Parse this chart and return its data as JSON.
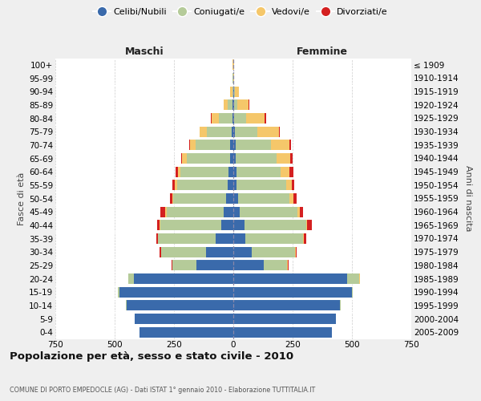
{
  "age_groups": [
    "0-4",
    "5-9",
    "10-14",
    "15-19",
    "20-24",
    "25-29",
    "30-34",
    "35-39",
    "40-44",
    "45-49",
    "50-54",
    "55-59",
    "60-64",
    "65-69",
    "70-74",
    "75-79",
    "80-84",
    "85-89",
    "90-94",
    "95-99",
    "100+"
  ],
  "birth_years": [
    "2005-2009",
    "2000-2004",
    "1995-1999",
    "1990-1994",
    "1985-1989",
    "1980-1984",
    "1975-1979",
    "1970-1974",
    "1965-1969",
    "1960-1964",
    "1955-1959",
    "1950-1954",
    "1945-1949",
    "1940-1944",
    "1935-1939",
    "1930-1934",
    "1925-1929",
    "1920-1924",
    "1915-1919",
    "1910-1914",
    "≤ 1909"
  ],
  "maschi_celibi": [
    395,
    415,
    450,
    480,
    420,
    155,
    115,
    75,
    50,
    40,
    30,
    25,
    20,
    15,
    12,
    8,
    5,
    2,
    0,
    0,
    0
  ],
  "maschi_coniugati": [
    0,
    0,
    2,
    6,
    22,
    102,
    188,
    242,
    258,
    242,
    222,
    212,
    202,
    182,
    148,
    105,
    55,
    20,
    5,
    2,
    1
  ],
  "maschi_vedovi": [
    0,
    0,
    0,
    0,
    0,
    1,
    2,
    2,
    2,
    4,
    6,
    8,
    12,
    18,
    22,
    28,
    32,
    20,
    8,
    2,
    1
  ],
  "maschi_divorziati": [
    0,
    0,
    0,
    0,
    0,
    2,
    5,
    5,
    10,
    20,
    10,
    12,
    10,
    5,
    5,
    2,
    2,
    0,
    0,
    0,
    0
  ],
  "femmine_nubili": [
    415,
    432,
    450,
    500,
    480,
    130,
    78,
    52,
    48,
    28,
    20,
    15,
    12,
    10,
    10,
    8,
    5,
    2,
    2,
    0,
    0
  ],
  "femmine_coniugate": [
    0,
    1,
    2,
    5,
    52,
    98,
    182,
    242,
    258,
    242,
    218,
    208,
    188,
    172,
    148,
    95,
    50,
    15,
    5,
    1,
    1
  ],
  "femmine_vedove": [
    0,
    0,
    0,
    0,
    2,
    2,
    2,
    4,
    6,
    10,
    15,
    22,
    38,
    58,
    78,
    88,
    78,
    48,
    15,
    3,
    1
  ],
  "femmine_divorziate": [
    0,
    0,
    0,
    0,
    0,
    2,
    5,
    10,
    20,
    15,
    15,
    12,
    15,
    10,
    8,
    5,
    5,
    2,
    0,
    0,
    0
  ],
  "color_celibi": "#3a6aab",
  "color_coniugati": "#b5cb99",
  "color_vedovi": "#f5c76a",
  "color_divorziati": "#d42020",
  "xlim": 750,
  "xtick_positions": [
    -750,
    -500,
    -250,
    0,
    250,
    500,
    750
  ],
  "title": "Popolazione per età, sesso e stato civile - 2010",
  "subtitle": "COMUNE DI PORTO EMPEDOCLE (AG) - Dati ISTAT 1° gennaio 2010 - Elaborazione TUTTITALIA.IT",
  "label_maschi": "Maschi",
  "label_femmine": "Femmine",
  "ylabel_left": "Fasce di età",
  "ylabel_right": "Anni di nascita",
  "legend_labels": [
    "Celibi/Nubili",
    "Coniugati/e",
    "Vedovi/e",
    "Divorziati/e"
  ],
  "bg_color": "#efefef",
  "plot_bg": "#ffffff"
}
